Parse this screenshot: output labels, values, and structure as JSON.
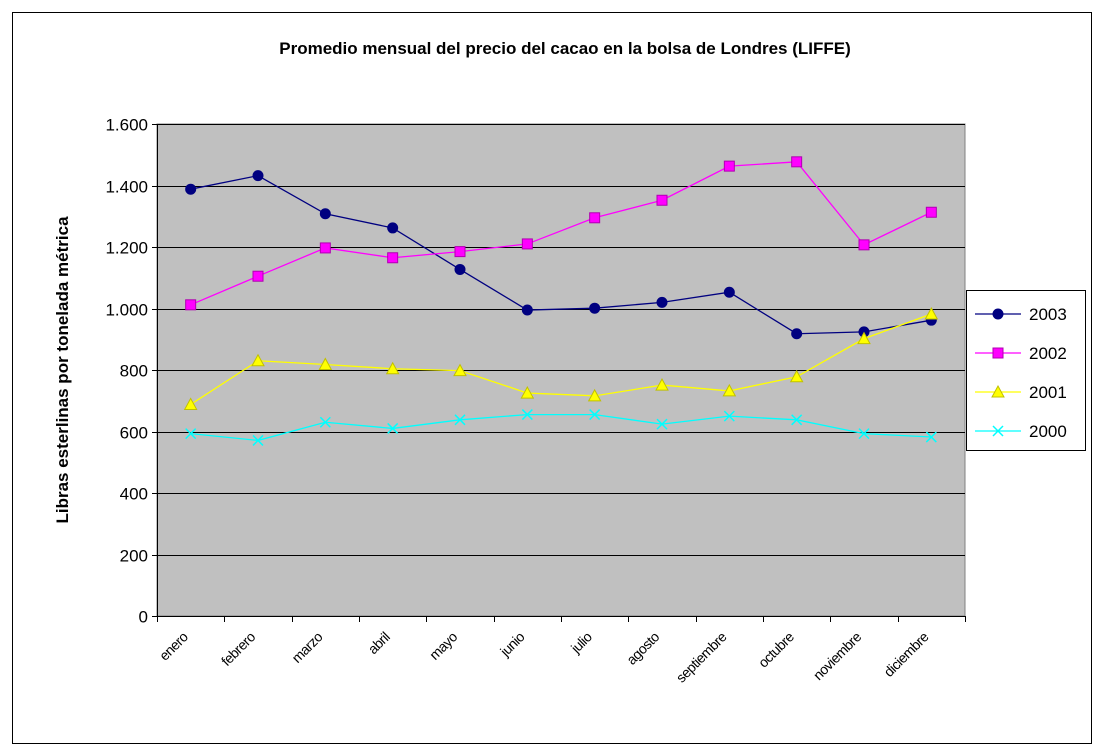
{
  "chart_data": {
    "type": "line",
    "title": "Promedio mensual del precio del cacao en la bolsa de Londres (LIFFE)",
    "y_label": "Libras esterlinas por tonelada métrica",
    "categories": [
      "enero",
      "febrero",
      "marzo",
      "abril",
      "mayo",
      "junio",
      "julio",
      "agosto",
      "septiembre",
      "octubre",
      "noviembre",
      "diciembre"
    ],
    "series": [
      {
        "name": "2003",
        "color": "#000080",
        "marker": "circle",
        "values": [
          1388,
          1432,
          1308,
          1262,
          1127,
          995,
          1001,
          1020,
          1053,
          918,
          924,
          962
        ]
      },
      {
        "name": "2002",
        "color": "#ff00ff",
        "marker": "square",
        "values": [
          1012,
          1105,
          1197,
          1165,
          1185,
          1210,
          1295,
          1352,
          1463,
          1477,
          1207,
          1313
        ]
      },
      {
        "name": "2001",
        "color": "#ffff00",
        "marker": "triangle",
        "values": [
          688,
          830,
          818,
          804,
          798,
          725,
          716,
          751,
          732,
          778,
          902,
          982
        ]
      },
      {
        "name": "2000",
        "color": "#00ffff",
        "marker": "x",
        "values": [
          593,
          571,
          630,
          610,
          638,
          655,
          655,
          624,
          650,
          638,
          593,
          582
        ]
      }
    ],
    "ylim": [
      0,
      1600
    ],
    "yticks": [
      0,
      200,
      400,
      600,
      800,
      {
        "value": 1000,
        "label": "1.000"
      },
      {
        "value": 1200,
        "label": "1.200"
      },
      {
        "value": 1400,
        "label": "1.400"
      },
      {
        "value": 1600,
        "label": "1.600"
      }
    ],
    "grid": true,
    "legend": "right",
    "plot_background": "#c0c0c0"
  }
}
